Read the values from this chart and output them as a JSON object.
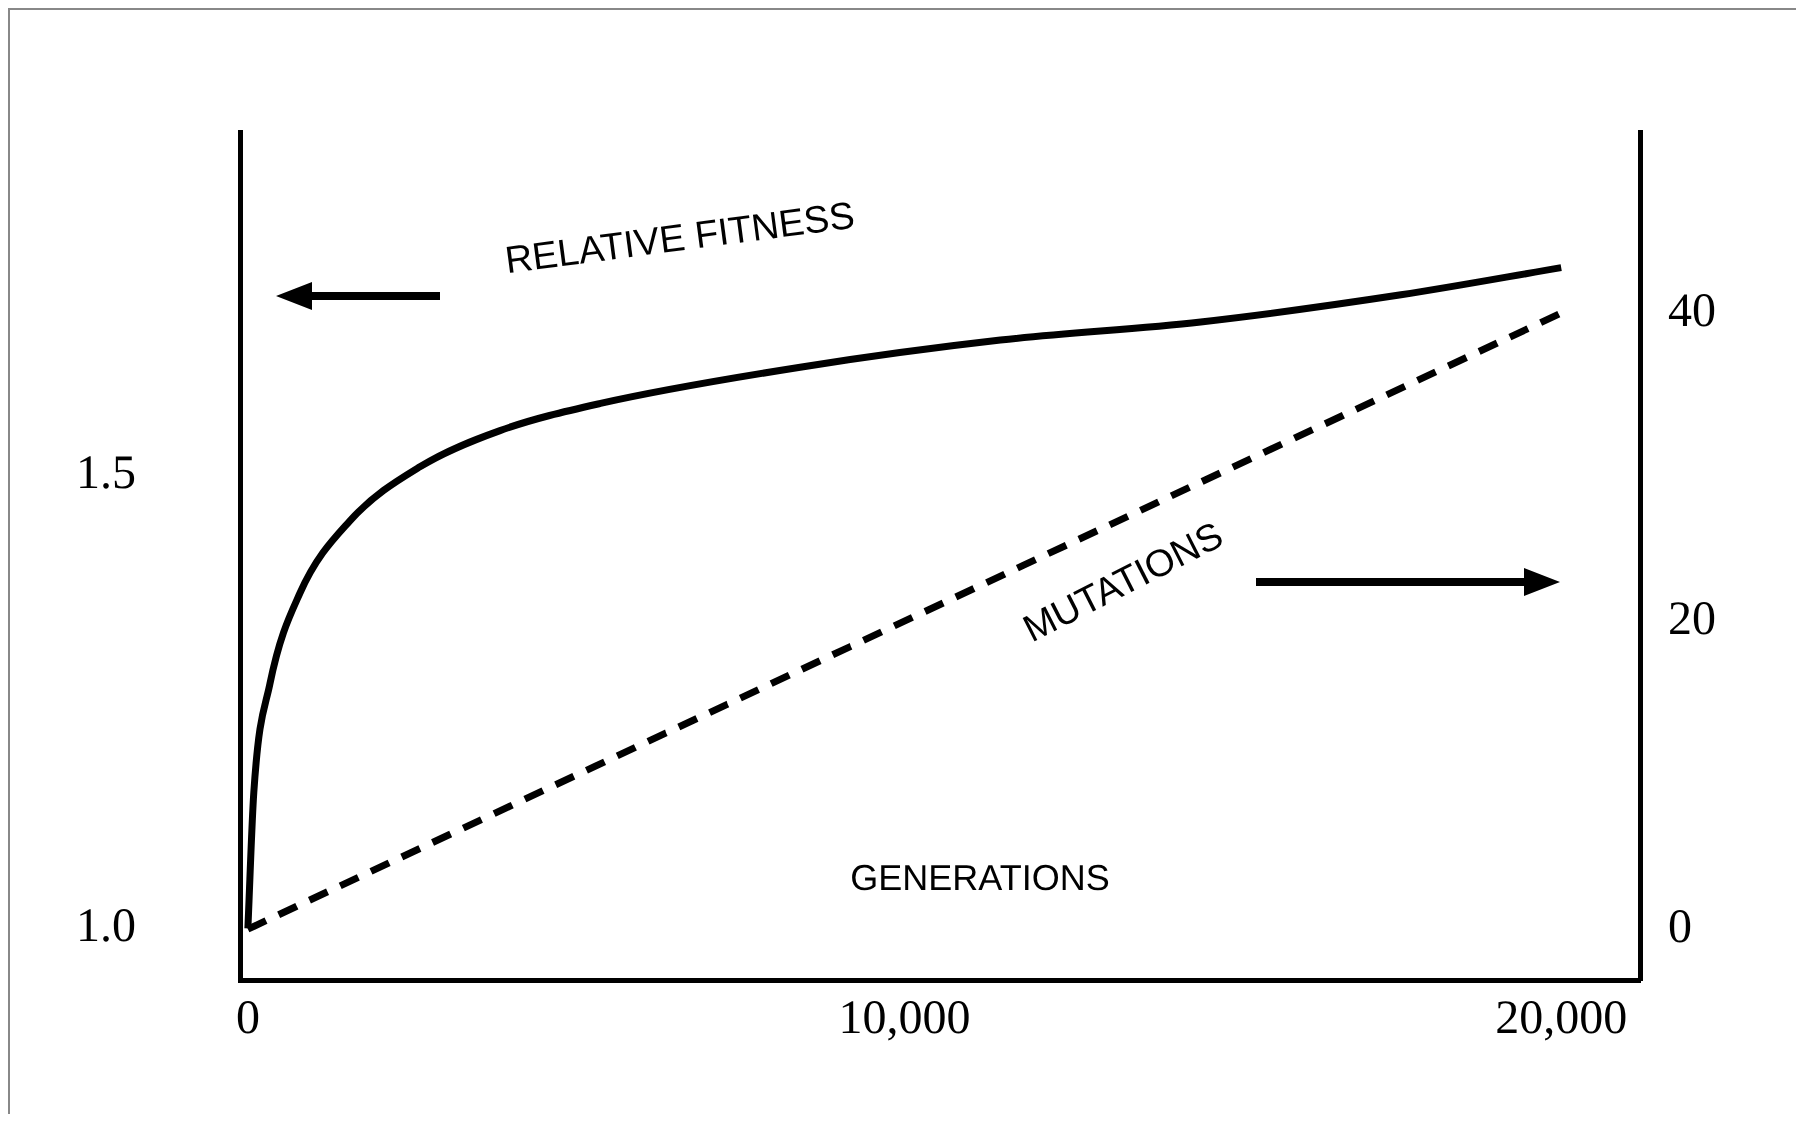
{
  "chart_data": {
    "type": "line",
    "xlabel": "GENERATIONS",
    "x": [
      0,
      90,
      335,
      790,
      1550,
      2620,
      3840,
      5370,
      8410,
      11460,
      14510,
      17560,
      20000
    ],
    "series": [
      {
        "name": "RELATIVE FITNESS",
        "color": "#000000",
        "line_style": "solid",
        "axis": "y",
        "values": [
          1.0,
          1.15,
          1.27,
          1.37,
          1.45,
          1.51,
          1.55,
          1.58,
          1.62,
          1.65,
          1.67,
          1.7,
          1.73
        ]
      },
      {
        "name": "MUTATIONS",
        "color": "#000000",
        "line_style": "dashed",
        "axis": "y2",
        "x": [
          0,
          20000
        ],
        "values": [
          0,
          40
        ]
      }
    ],
    "xlim": [
      -120,
      21200
    ],
    "xticks": [
      0,
      {
        "value": 10000,
        "label": "10,000"
      },
      {
        "value": 20000,
        "label": "20,000"
      }
    ],
    "ylim": [
      0.943,
      1.879
    ],
    "yticks": [
      {
        "value": 1,
        "label": "1.0"
      },
      1.5
    ],
    "y2lim": [
      -3.3,
      51.7
    ],
    "y2ticks": [
      0,
      20,
      40
    ],
    "grid": false,
    "legend": false,
    "marker": "none"
  }
}
